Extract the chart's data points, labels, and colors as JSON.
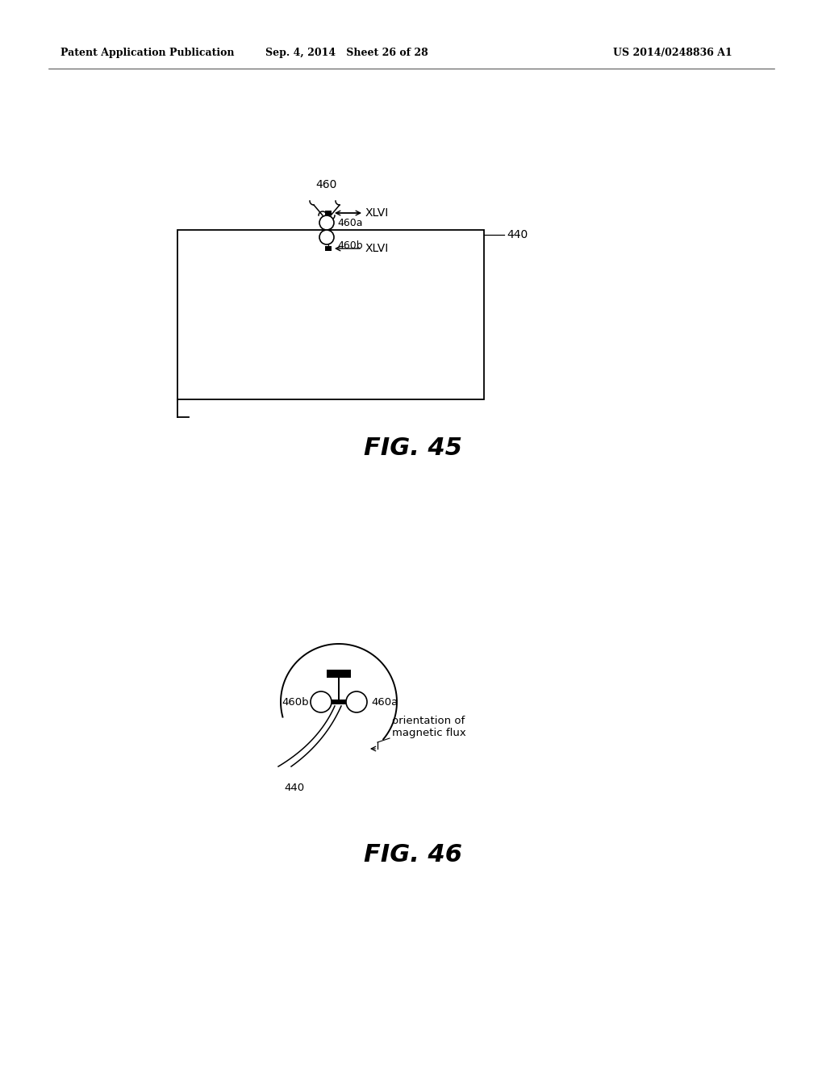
{
  "background_color": "#ffffff",
  "header_left": "Patent Application Publication",
  "header_mid": "Sep. 4, 2014   Sheet 26 of 28",
  "header_right": "US 2014/0248836 A1",
  "fig45_label": "FIG. 45",
  "fig46_label": "FIG. 46",
  "label_460": "460",
  "label_460a_45": "460a",
  "label_460b_45": "460b",
  "label_440_45": "440",
  "label_XLVI": "XLVI",
  "label_460a_46": "460a",
  "label_460b_46": "460b",
  "label_440_46": "440",
  "label_orient": "orientation of\nmagnetic flux",
  "fig_width": 1024,
  "fig_height": 1320
}
